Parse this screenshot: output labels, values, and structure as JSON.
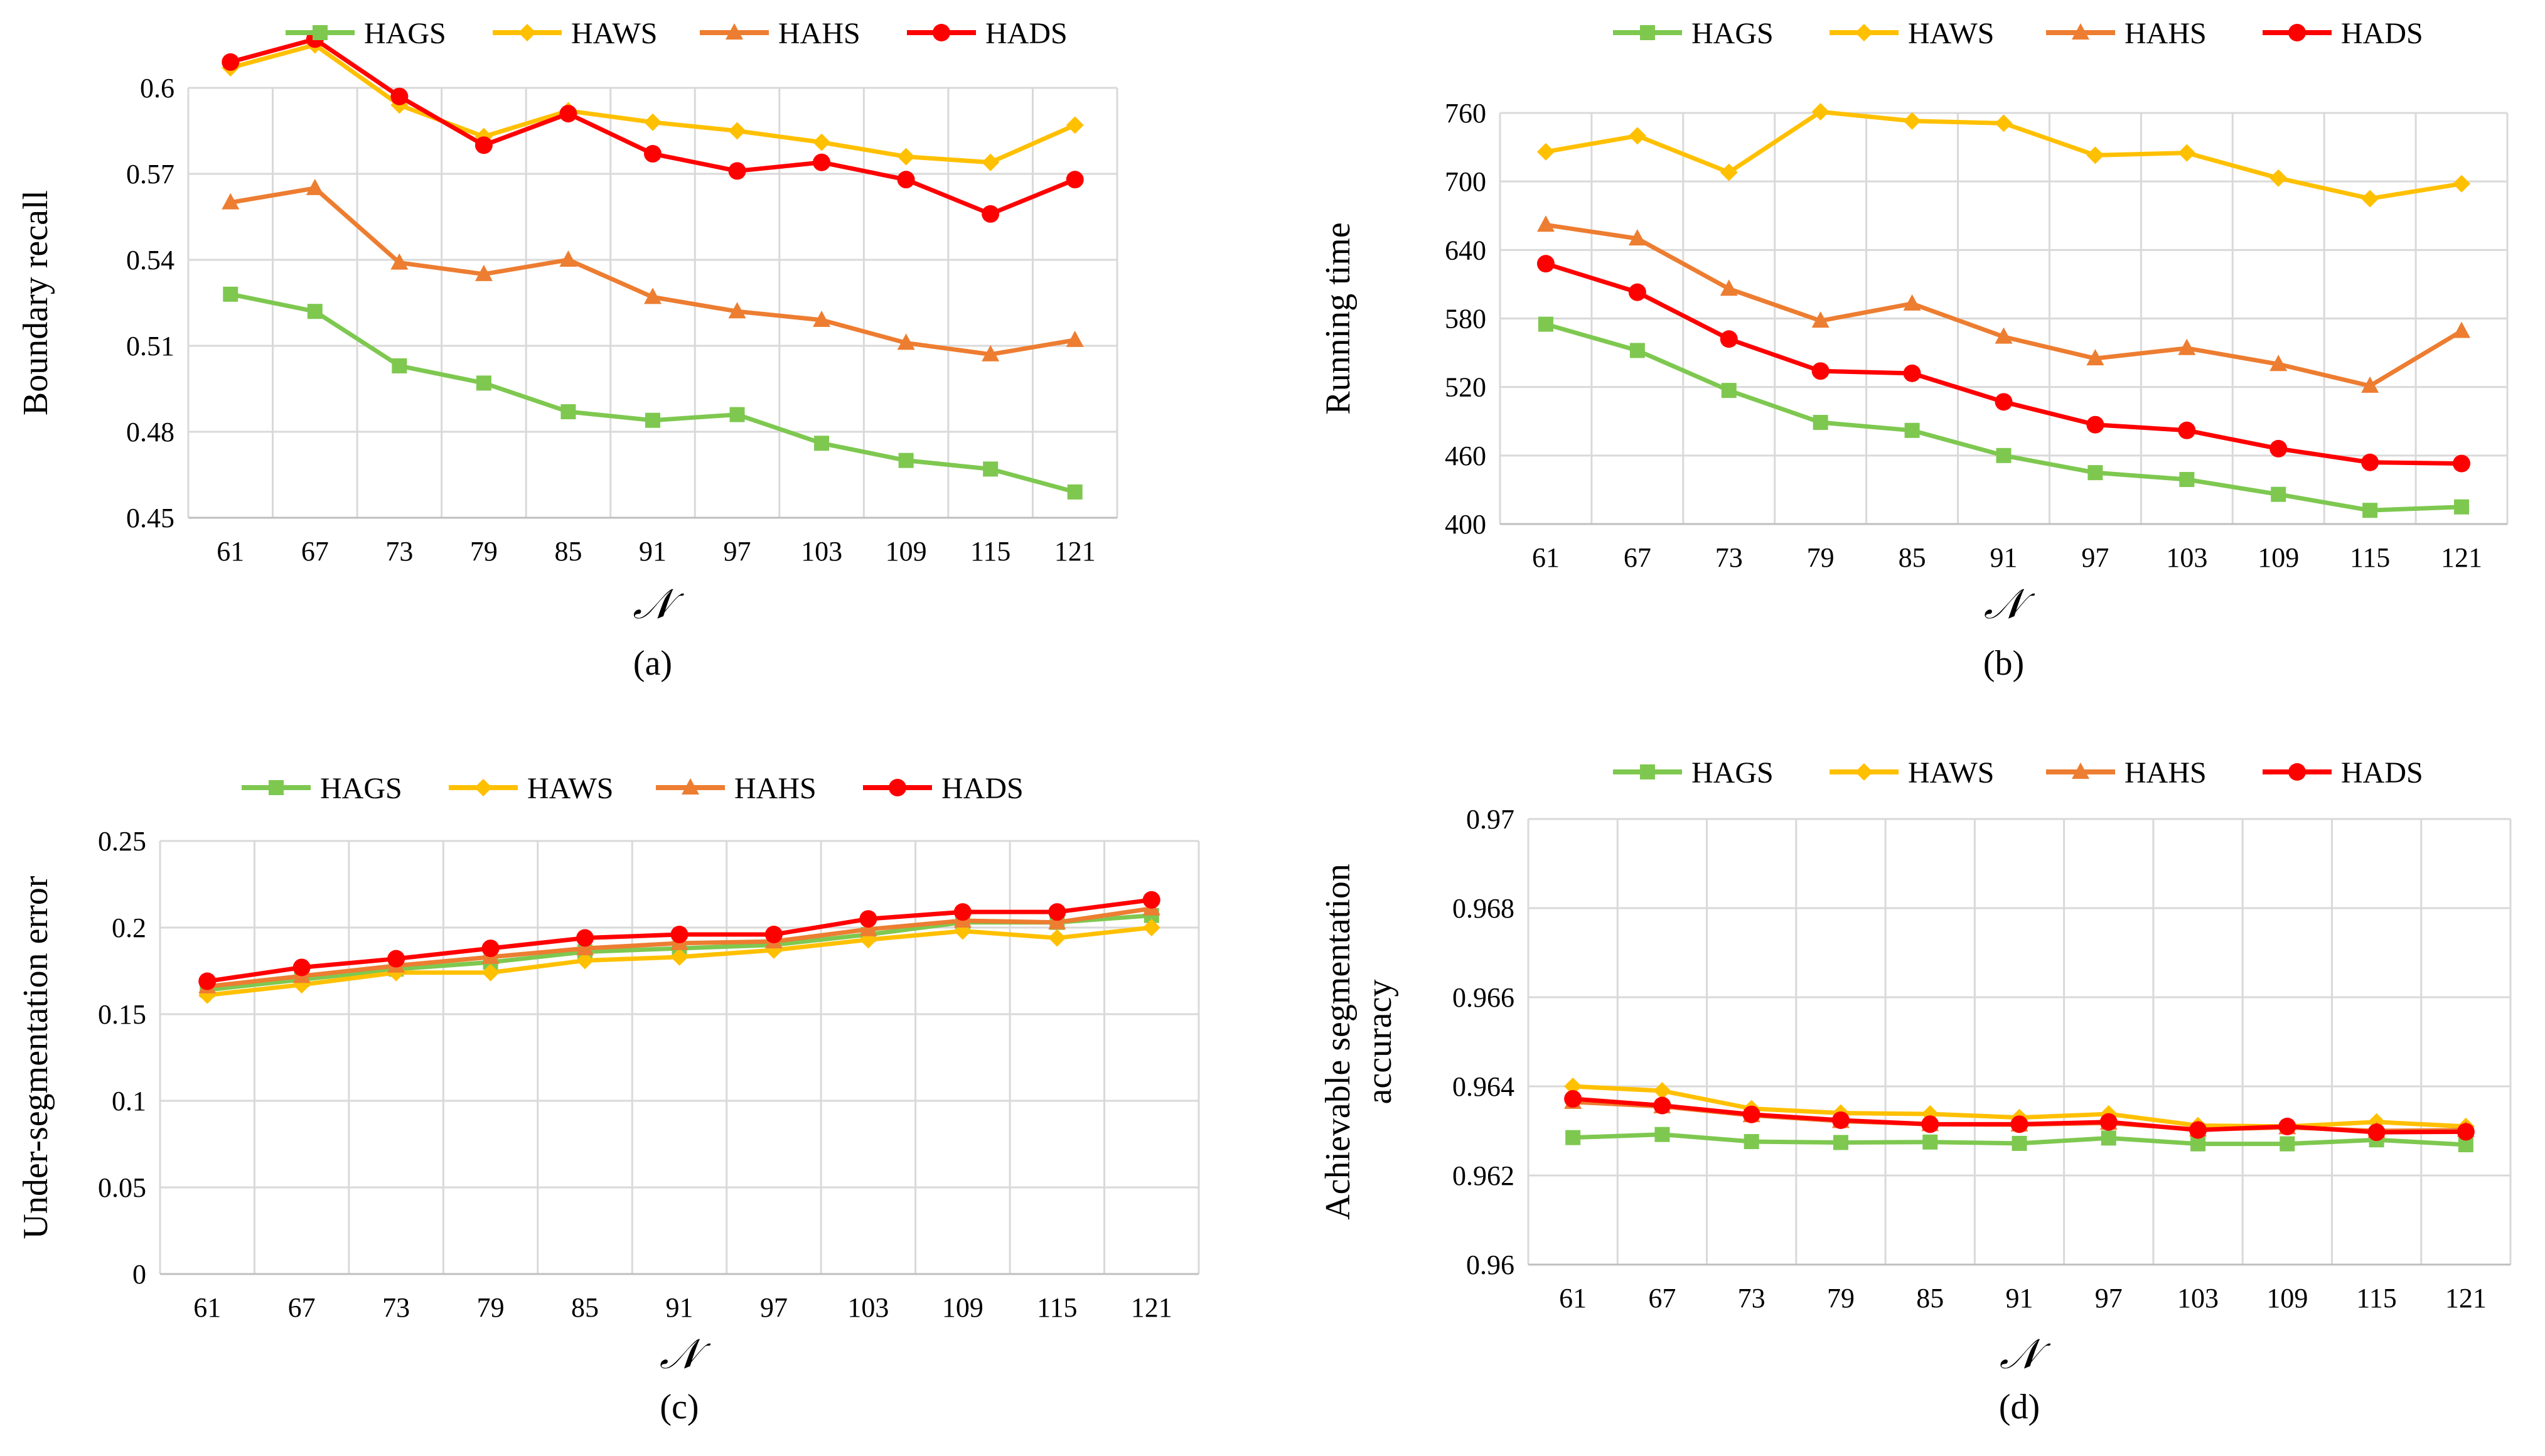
{
  "colors": {
    "HAGS": "#7ec850",
    "HAWS": "#ffc000",
    "HAHS": "#ed7d31",
    "HADS": "#ff0000",
    "grid": "#d9d9d9",
    "axis": "#bfbfbf"
  },
  "chart_data": [
    {
      "type": "line",
      "caption": "(a)",
      "xlabel": "𝒩",
      "ylabel": "Boundary recall",
      "categories": [
        "61",
        "67",
        "73",
        "79",
        "85",
        "91",
        "97",
        "103",
        "109",
        "115",
        "121"
      ],
      "yticks": [
        "0.45",
        "0.48",
        "0.51",
        "0.54",
        "0.57",
        "0.6"
      ],
      "ylim": [
        0.45,
        0.6
      ],
      "grid": true,
      "legend_position": "top",
      "series": [
        {
          "name": "HAGS",
          "marker": "square",
          "values": [
            0.528,
            0.522,
            0.503,
            0.497,
            0.487,
            0.484,
            0.486,
            0.476,
            0.47,
            0.467,
            0.459
          ]
        },
        {
          "name": "HAWS",
          "marker": "diamond",
          "values": [
            0.607,
            0.615,
            0.594,
            0.583,
            0.592,
            0.588,
            0.585,
            0.581,
            0.576,
            0.574,
            0.587
          ]
        },
        {
          "name": "HAHS",
          "marker": "triangle",
          "values": [
            0.56,
            0.565,
            0.539,
            0.535,
            0.54,
            0.527,
            0.522,
            0.519,
            0.511,
            0.507,
            0.512
          ]
        },
        {
          "name": "HADS",
          "marker": "circle",
          "values": [
            0.609,
            0.617,
            0.597,
            0.58,
            0.591,
            0.577,
            0.571,
            0.574,
            0.568,
            0.556,
            0.568
          ]
        }
      ]
    },
    {
      "type": "line",
      "caption": "(b)",
      "xlabel": "𝒩",
      "ylabel": "Running time",
      "categories": [
        "61",
        "67",
        "73",
        "79",
        "85",
        "91",
        "97",
        "103",
        "109",
        "115",
        "121"
      ],
      "yticks": [
        "400",
        "460",
        "520",
        "580",
        "640",
        "700",
        "760"
      ],
      "ylim": [
        400,
        760
      ],
      "grid": true,
      "legend_position": "top",
      "series": [
        {
          "name": "HAGS",
          "marker": "square",
          "values": [
            575,
            552,
            517,
            489,
            482,
            460,
            445,
            439,
            426,
            412,
            415
          ]
        },
        {
          "name": "HAWS",
          "marker": "diamond",
          "values": [
            726,
            740,
            708,
            761,
            753,
            751,
            723,
            725,
            703,
            685,
            698
          ]
        },
        {
          "name": "HAHS",
          "marker": "triangle",
          "values": [
            662,
            650,
            606,
            578,
            593,
            564,
            545,
            554,
            540,
            521,
            569
          ]
        },
        {
          "name": "HADS",
          "marker": "circle",
          "values": [
            628,
            603,
            562,
            534,
            532,
            507,
            487,
            482,
            466,
            454,
            453
          ]
        }
      ]
    },
    {
      "type": "line",
      "caption": "(c)",
      "xlabel": "𝒩",
      "ylabel": "Under-segmentation error",
      "categories": [
        "61",
        "67",
        "73",
        "79",
        "85",
        "91",
        "97",
        "103",
        "109",
        "115",
        "121"
      ],
      "yticks": [
        "0",
        "0.05",
        "0.1",
        "0.15",
        "0.2",
        "0.25"
      ],
      "ylim": [
        0,
        0.25
      ],
      "grid": true,
      "legend_position": "top",
      "series": [
        {
          "name": "HAGS",
          "marker": "square",
          "values": [
            0.164,
            0.17,
            0.176,
            0.18,
            0.186,
            0.188,
            0.19,
            0.196,
            0.203,
            0.203,
            0.207
          ]
        },
        {
          "name": "HAWS",
          "marker": "diamond",
          "values": [
            0.161,
            0.167,
            0.174,
            0.174,
            0.181,
            0.183,
            0.187,
            0.193,
            0.198,
            0.194,
            0.2
          ]
        },
        {
          "name": "HAHS",
          "marker": "triangle",
          "values": [
            0.166,
            0.172,
            0.178,
            0.183,
            0.188,
            0.191,
            0.192,
            0.199,
            0.204,
            0.203,
            0.211
          ]
        },
        {
          "name": "HADS",
          "marker": "circle",
          "values": [
            0.169,
            0.177,
            0.182,
            0.188,
            0.194,
            0.196,
            0.196,
            0.205,
            0.209,
            0.209,
            0.216
          ]
        }
      ]
    },
    {
      "type": "line",
      "caption": "(d)",
      "xlabel": "𝒩",
      "ylabel_lines": [
        "Achievable segmentation",
        "accuracy"
      ],
      "categories": [
        "61",
        "67",
        "73",
        "79",
        "85",
        "91",
        "97",
        "103",
        "109",
        "115",
        "121"
      ],
      "yticks": [
        "0.96",
        "0.962",
        "0.964",
        "0.966",
        "0.968",
        "0.97"
      ],
      "ylim": [
        0.96,
        0.97
      ],
      "grid": true,
      "legend_position": "top",
      "series": [
        {
          "name": "HAGS",
          "marker": "square",
          "values": [
            0.96285,
            0.96292,
            0.96276,
            0.96274,
            0.96275,
            0.96272,
            0.96284,
            0.96271,
            0.96271,
            0.9628,
            0.96269
          ]
        },
        {
          "name": "HAWS",
          "marker": "diamond",
          "values": [
            0.964,
            0.9639,
            0.9635,
            0.9634,
            0.96338,
            0.9633,
            0.96338,
            0.96312,
            0.9631,
            0.9632,
            0.9631
          ]
        },
        {
          "name": "HAHS",
          "marker": "triangle",
          "values": [
            0.96365,
            0.96355,
            0.96335,
            0.96322,
            0.96315,
            0.96314,
            0.96318,
            0.96303,
            0.96308,
            0.963,
            0.96302
          ]
        },
        {
          "name": "HADS",
          "marker": "circle",
          "values": [
            0.96372,
            0.96357,
            0.96337,
            0.96324,
            0.96315,
            0.96315,
            0.9632,
            0.96302,
            0.9631,
            0.96297,
            0.96298
          ]
        }
      ]
    }
  ]
}
